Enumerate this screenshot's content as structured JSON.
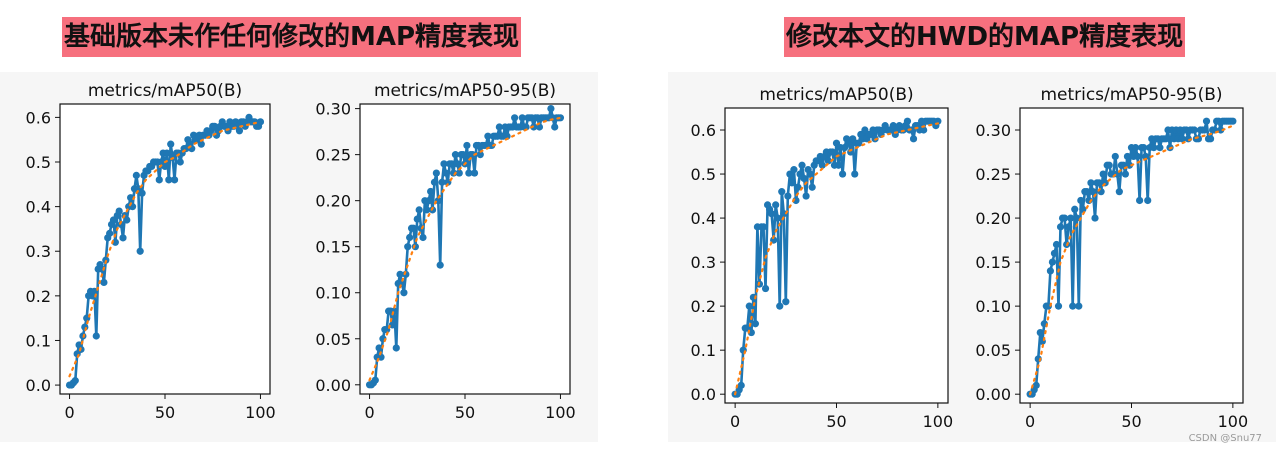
{
  "headings": {
    "left": "基础版本未作任何修改的MAP精度表现",
    "right": "修改本文的HWD的MAP精度表现"
  },
  "watermark": "CSDN @Snu77",
  "colors": {
    "series": "#1f77b4",
    "smooth": "#ff7f0e",
    "heading_bg": "#f6707e"
  },
  "chart_data": [
    {
      "type": "line",
      "title": "metrics/mAP50(B)",
      "xlim": [
        -5,
        105
      ],
      "ylim": [
        -0.02,
        0.63
      ],
      "xticks": [
        0,
        50,
        100
      ],
      "yticks": [
        0.0,
        0.1,
        0.2,
        0.3,
        0.4,
        0.5,
        0.6
      ],
      "series": [
        {
          "style": "markers-line",
          "x": [
            0,
            1,
            2,
            3,
            4,
            5,
            6,
            7,
            8,
            9,
            10,
            11,
            12,
            13,
            14,
            15,
            16,
            17,
            18,
            19,
            20,
            21,
            22,
            23,
            24,
            25,
            26,
            27,
            28,
            29,
            30,
            31,
            32,
            33,
            34,
            35,
            36,
            37,
            38,
            39,
            40,
            41,
            42,
            43,
            44,
            45,
            46,
            47,
            48,
            49,
            50,
            51,
            52,
            53,
            54,
            55,
            56,
            57,
            58,
            59,
            60,
            61,
            62,
            63,
            64,
            65,
            66,
            67,
            68,
            69,
            70,
            71,
            72,
            73,
            74,
            75,
            76,
            77,
            78,
            79,
            80,
            81,
            82,
            83,
            84,
            85,
            86,
            87,
            88,
            89,
            90,
            91,
            92,
            93,
            94,
            95,
            96,
            97,
            98,
            99,
            100
          ],
          "y": [
            0.0,
            0.0,
            0.005,
            0.01,
            0.07,
            0.09,
            0.08,
            0.11,
            0.13,
            0.15,
            0.2,
            0.21,
            0.2,
            0.21,
            0.11,
            0.26,
            0.27,
            0.26,
            0.23,
            0.28,
            0.33,
            0.34,
            0.36,
            0.37,
            0.32,
            0.38,
            0.39,
            0.36,
            0.33,
            0.38,
            0.37,
            0.4,
            0.42,
            0.4,
            0.44,
            0.47,
            0.44,
            0.3,
            0.43,
            0.47,
            0.48,
            0.48,
            0.49,
            0.49,
            0.5,
            0.5,
            0.5,
            0.46,
            0.5,
            0.52,
            0.49,
            0.52,
            0.46,
            0.54,
            0.51,
            0.46,
            0.52,
            0.52,
            0.5,
            0.52,
            0.53,
            0.53,
            0.55,
            0.54,
            0.53,
            0.56,
            0.55,
            0.55,
            0.56,
            0.54,
            0.56,
            0.56,
            0.57,
            0.56,
            0.57,
            0.58,
            0.58,
            0.56,
            0.57,
            0.58,
            0.59,
            0.58,
            0.58,
            0.57,
            0.59,
            0.58,
            0.58,
            0.59,
            0.58,
            0.57,
            0.59,
            0.59,
            0.58,
            0.59,
            0.6,
            0.59,
            0.59,
            0.59,
            0.58,
            0.58,
            0.59
          ]
        },
        {
          "style": "dotted-smooth",
          "x": [
            0,
            5,
            10,
            15,
            20,
            25,
            30,
            35,
            40,
            45,
            50,
            55,
            60,
            65,
            70,
            75,
            80,
            85,
            90,
            95,
            100
          ],
          "y": [
            0.02,
            0.07,
            0.15,
            0.22,
            0.29,
            0.35,
            0.39,
            0.43,
            0.46,
            0.48,
            0.5,
            0.51,
            0.525,
            0.54,
            0.55,
            0.56,
            0.57,
            0.575,
            0.58,
            0.585,
            0.59
          ]
        }
      ]
    },
    {
      "type": "line",
      "title": "metrics/mAP50-95(B)",
      "xlim": [
        -5,
        105
      ],
      "ylim": [
        -0.01,
        0.305
      ],
      "xticks": [
        0,
        50,
        100
      ],
      "yticks": [
        0.0,
        0.05,
        0.1,
        0.15,
        0.2,
        0.25,
        0.3
      ],
      "series": [
        {
          "style": "markers-line",
          "x": [
            0,
            1,
            2,
            3,
            4,
            5,
            6,
            7,
            8,
            9,
            10,
            11,
            12,
            13,
            14,
            15,
            16,
            17,
            18,
            19,
            20,
            21,
            22,
            23,
            24,
            25,
            26,
            27,
            28,
            29,
            30,
            31,
            32,
            33,
            34,
            35,
            36,
            37,
            38,
            39,
            40,
            41,
            42,
            43,
            44,
            45,
            46,
            47,
            48,
            49,
            50,
            51,
            52,
            53,
            54,
            55,
            56,
            57,
            58,
            59,
            60,
            61,
            62,
            63,
            64,
            65,
            66,
            67,
            68,
            69,
            70,
            71,
            72,
            73,
            74,
            75,
            76,
            77,
            78,
            79,
            80,
            81,
            82,
            83,
            84,
            85,
            86,
            87,
            88,
            89,
            90,
            91,
            92,
            93,
            94,
            95,
            96,
            97,
            98,
            99,
            100
          ],
          "y": [
            0.0,
            0.0,
            0.002,
            0.005,
            0.03,
            0.04,
            0.03,
            0.05,
            0.06,
            0.06,
            0.08,
            0.08,
            0.065,
            0.08,
            0.04,
            0.11,
            0.12,
            0.11,
            0.1,
            0.12,
            0.15,
            0.16,
            0.17,
            0.17,
            0.15,
            0.18,
            0.19,
            0.17,
            0.16,
            0.2,
            0.19,
            0.2,
            0.21,
            0.19,
            0.22,
            0.23,
            0.2,
            0.13,
            0.22,
            0.24,
            0.23,
            0.22,
            0.24,
            0.24,
            0.23,
            0.25,
            0.24,
            0.23,
            0.25,
            0.25,
            0.24,
            0.26,
            0.23,
            0.25,
            0.25,
            0.23,
            0.26,
            0.26,
            0.25,
            0.26,
            0.26,
            0.26,
            0.27,
            0.26,
            0.26,
            0.27,
            0.27,
            0.27,
            0.28,
            0.27,
            0.27,
            0.28,
            0.27,
            0.28,
            0.28,
            0.28,
            0.29,
            0.28,
            0.28,
            0.28,
            0.29,
            0.28,
            0.28,
            0.29,
            0.29,
            0.29,
            0.28,
            0.29,
            0.29,
            0.28,
            0.29,
            0.29,
            0.29,
            0.29,
            0.29,
            0.3,
            0.29,
            0.28,
            0.29,
            0.29,
            0.29
          ]
        },
        {
          "style": "dotted-smooth",
          "x": [
            0,
            5,
            10,
            15,
            20,
            25,
            30,
            35,
            40,
            45,
            50,
            55,
            60,
            65,
            70,
            75,
            80,
            85,
            90,
            95,
            100
          ],
          "y": [
            0.005,
            0.03,
            0.06,
            0.1,
            0.13,
            0.16,
            0.18,
            0.2,
            0.215,
            0.23,
            0.24,
            0.25,
            0.255,
            0.26,
            0.265,
            0.27,
            0.275,
            0.28,
            0.285,
            0.288,
            0.29
          ]
        }
      ]
    },
    {
      "type": "line",
      "title": "metrics/mAP50(B)",
      "xlim": [
        -5,
        105
      ],
      "ylim": [
        -0.02,
        0.65
      ],
      "xticks": [
        0,
        50,
        100
      ],
      "yticks": [
        0.0,
        0.1,
        0.2,
        0.3,
        0.4,
        0.5,
        0.6
      ],
      "series": [
        {
          "style": "markers-line",
          "x": [
            0,
            1,
            2,
            3,
            4,
            5,
            6,
            7,
            8,
            9,
            10,
            11,
            12,
            13,
            14,
            15,
            16,
            17,
            18,
            19,
            20,
            21,
            22,
            23,
            24,
            25,
            26,
            27,
            28,
            29,
            30,
            31,
            32,
            33,
            34,
            35,
            36,
            37,
            38,
            39,
            40,
            41,
            42,
            43,
            44,
            45,
            46,
            47,
            48,
            49,
            50,
            51,
            52,
            53,
            54,
            55,
            56,
            57,
            58,
            59,
            60,
            61,
            62,
            63,
            64,
            65,
            66,
            67,
            68,
            69,
            70,
            71,
            72,
            73,
            74,
            75,
            76,
            77,
            78,
            79,
            80,
            81,
            82,
            83,
            84,
            85,
            86,
            87,
            88,
            89,
            90,
            91,
            92,
            93,
            94,
            95,
            96,
            97,
            98,
            99,
            100
          ],
          "y": [
            0.0,
            0.0,
            0.01,
            0.02,
            0.1,
            0.15,
            0.15,
            0.2,
            0.14,
            0.22,
            0.16,
            0.38,
            0.25,
            0.38,
            0.38,
            0.24,
            0.43,
            0.42,
            0.41,
            0.35,
            0.43,
            0.4,
            0.2,
            0.46,
            0.41,
            0.21,
            0.45,
            0.5,
            0.48,
            0.51,
            0.44,
            0.47,
            0.5,
            0.52,
            0.49,
            0.45,
            0.51,
            0.5,
            0.47,
            0.52,
            0.53,
            0.53,
            0.54,
            0.52,
            0.54,
            0.55,
            0.53,
            0.55,
            0.55,
            0.52,
            0.57,
            0.52,
            0.56,
            0.5,
            0.56,
            0.58,
            0.57,
            0.55,
            0.58,
            0.5,
            0.57,
            0.57,
            0.59,
            0.58,
            0.6,
            0.58,
            0.59,
            0.59,
            0.6,
            0.58,
            0.6,
            0.6,
            0.59,
            0.6,
            0.61,
            0.6,
            0.6,
            0.6,
            0.61,
            0.59,
            0.6,
            0.61,
            0.6,
            0.6,
            0.61,
            0.62,
            0.6,
            0.6,
            0.58,
            0.61,
            0.61,
            0.6,
            0.62,
            0.6,
            0.62,
            0.62,
            0.62,
            0.62,
            0.62,
            0.61,
            0.62
          ]
        },
        {
          "style": "dotted-smooth",
          "x": [
            0,
            5,
            10,
            15,
            20,
            25,
            30,
            35,
            40,
            45,
            50,
            55,
            60,
            65,
            70,
            75,
            80,
            85,
            90,
            95,
            100
          ],
          "y": [
            0.0,
            0.1,
            0.22,
            0.31,
            0.37,
            0.41,
            0.45,
            0.48,
            0.5,
            0.52,
            0.54,
            0.55,
            0.56,
            0.57,
            0.58,
            0.59,
            0.595,
            0.6,
            0.605,
            0.61,
            0.615
          ]
        }
      ]
    },
    {
      "type": "line",
      "title": "metrics/mAP50-95(B)",
      "xlim": [
        -5,
        105
      ],
      "ylim": [
        -0.01,
        0.325
      ],
      "xticks": [
        0,
        50,
        100
      ],
      "yticks": [
        0.0,
        0.05,
        0.1,
        0.15,
        0.2,
        0.25,
        0.3
      ],
      "series": [
        {
          "style": "markers-line",
          "x": [
            0,
            1,
            2,
            3,
            4,
            5,
            6,
            7,
            8,
            9,
            10,
            11,
            12,
            13,
            14,
            15,
            16,
            17,
            18,
            19,
            20,
            21,
            22,
            23,
            24,
            25,
            26,
            27,
            28,
            29,
            30,
            31,
            32,
            33,
            34,
            35,
            36,
            37,
            38,
            39,
            40,
            41,
            42,
            43,
            44,
            45,
            46,
            47,
            48,
            49,
            50,
            51,
            52,
            53,
            54,
            55,
            56,
            57,
            58,
            59,
            60,
            61,
            62,
            63,
            64,
            65,
            66,
            67,
            68,
            69,
            70,
            71,
            72,
            73,
            74,
            75,
            76,
            77,
            78,
            79,
            80,
            81,
            82,
            83,
            84,
            85,
            86,
            87,
            88,
            89,
            90,
            91,
            92,
            93,
            94,
            95,
            96,
            97,
            98,
            99,
            100
          ],
          "y": [
            0.0,
            0.0,
            0.005,
            0.01,
            0.04,
            0.07,
            0.06,
            0.08,
            0.1,
            0.1,
            0.14,
            0.15,
            0.16,
            0.17,
            0.1,
            0.19,
            0.2,
            0.2,
            0.17,
            0.19,
            0.2,
            0.1,
            0.21,
            0.2,
            0.1,
            0.22,
            0.21,
            0.23,
            0.23,
            0.22,
            0.24,
            0.23,
            0.2,
            0.24,
            0.24,
            0.23,
            0.25,
            0.24,
            0.26,
            0.26,
            0.25,
            0.25,
            0.27,
            0.25,
            0.23,
            0.26,
            0.26,
            0.25,
            0.27,
            0.26,
            0.28,
            0.27,
            0.28,
            0.27,
            0.22,
            0.28,
            0.28,
            0.27,
            0.22,
            0.28,
            0.29,
            0.28,
            0.29,
            0.29,
            0.28,
            0.29,
            0.29,
            0.29,
            0.3,
            0.28,
            0.3,
            0.29,
            0.3,
            0.29,
            0.3,
            0.29,
            0.3,
            0.3,
            0.29,
            0.3,
            0.3,
            0.3,
            0.29,
            0.29,
            0.3,
            0.3,
            0.3,
            0.31,
            0.29,
            0.29,
            0.3,
            0.3,
            0.31,
            0.31,
            0.3,
            0.31,
            0.31,
            0.31,
            0.31,
            0.31,
            0.31
          ]
        },
        {
          "style": "dotted-smooth",
          "x": [
            0,
            5,
            10,
            15,
            20,
            25,
            30,
            35,
            40,
            45,
            50,
            55,
            60,
            65,
            70,
            75,
            80,
            85,
            90,
            95,
            100
          ],
          "y": [
            0.0,
            0.04,
            0.1,
            0.15,
            0.18,
            0.2,
            0.22,
            0.235,
            0.245,
            0.255,
            0.26,
            0.265,
            0.27,
            0.275,
            0.28,
            0.285,
            0.29,
            0.293,
            0.296,
            0.3,
            0.305
          ]
        }
      ]
    }
  ]
}
